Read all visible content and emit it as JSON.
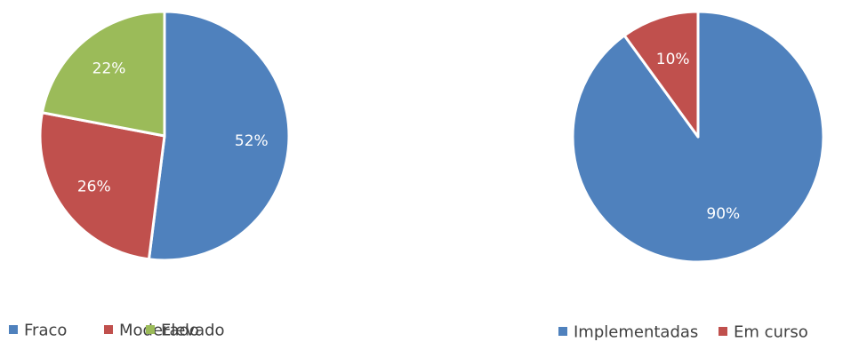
{
  "chart_data": [
    {
      "type": "pie",
      "categories": [
        "Fraco",
        "Moderado",
        "Elevado"
      ],
      "values": [
        52,
        26,
        22
      ],
      "labels": [
        "52%",
        "26%",
        "22%"
      ],
      "colors": [
        "#4F81BD",
        "#C0504D",
        "#9BBB59"
      ],
      "legend": {
        "position": "bottom",
        "entries": [
          "Fraco",
          "Moderado",
          "Elevado"
        ]
      },
      "title": ""
    },
    {
      "type": "pie",
      "categories": [
        "Implementadas",
        "Em curso"
      ],
      "values": [
        90,
        10
      ],
      "labels": [
        "90%",
        "10%"
      ],
      "colors": [
        "#4F81BD",
        "#C0504D"
      ],
      "legend": {
        "position": "bottom",
        "entries": [
          "Implementadas",
          "Em curso"
        ]
      },
      "title": ""
    }
  ]
}
